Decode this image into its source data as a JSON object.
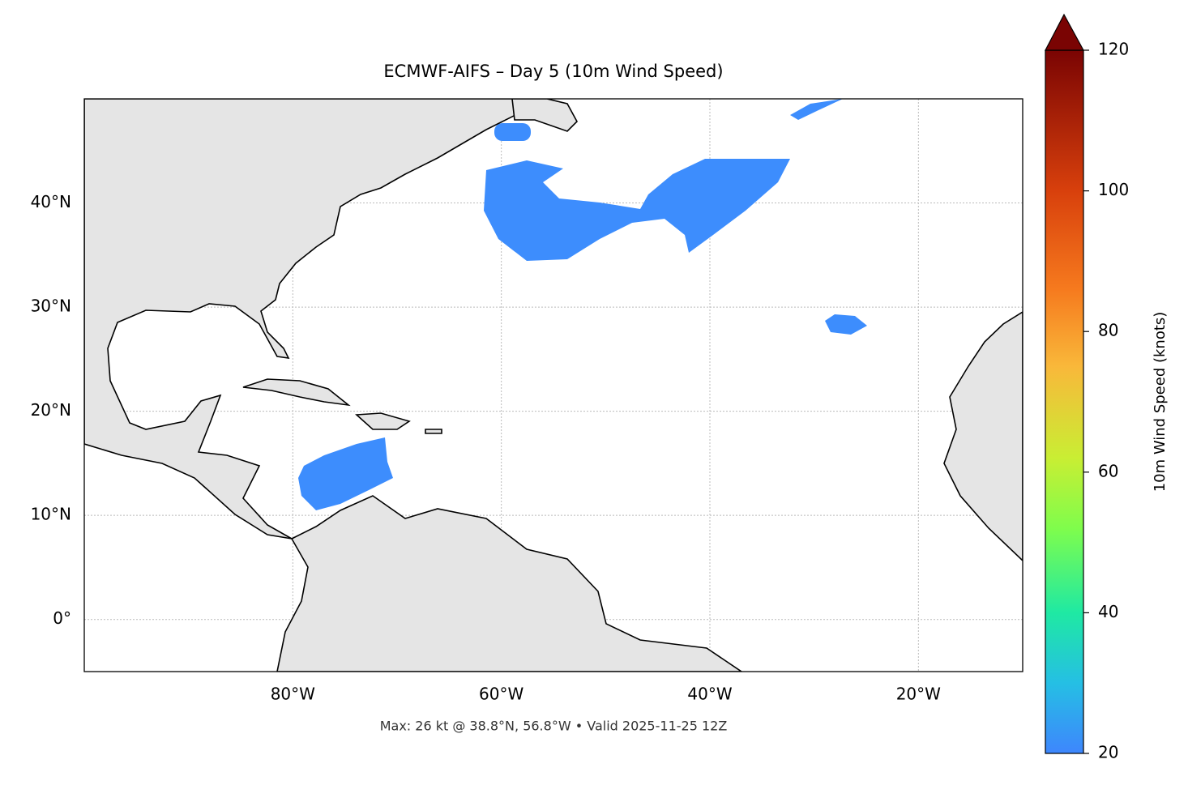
{
  "chart_data": {
    "type": "map",
    "title": "ECMWF-AIFS – Day 5 (10m Wind Speed)",
    "caption": "Max: 26 kt @ 38.8°N, 56.8°W • Valid 2025-11-25 12Z",
    "xlim": [
      -100,
      -10
    ],
    "ylim": [
      -5,
      50
    ],
    "xticks": [
      {
        "value": -80,
        "label": "80°W"
      },
      {
        "value": -60,
        "label": "60°W"
      },
      {
        "value": -40,
        "label": "40°W"
      },
      {
        "value": -20,
        "label": "20°W"
      }
    ],
    "yticks": [
      {
        "value": 0,
        "label": "0°"
      },
      {
        "value": 10,
        "label": "10°N"
      },
      {
        "value": 20,
        "label": "20°N"
      },
      {
        "value": 30,
        "label": "30°N"
      },
      {
        "value": 40,
        "label": "40°N"
      }
    ],
    "grid": true,
    "land_color": "#e5e5e5",
    "colorbar": {
      "label": "10m Wind Speed (knots)",
      "lim": [
        20,
        120
      ],
      "ticks": [
        20,
        40,
        60,
        80,
        100,
        120
      ]
    }
  }
}
